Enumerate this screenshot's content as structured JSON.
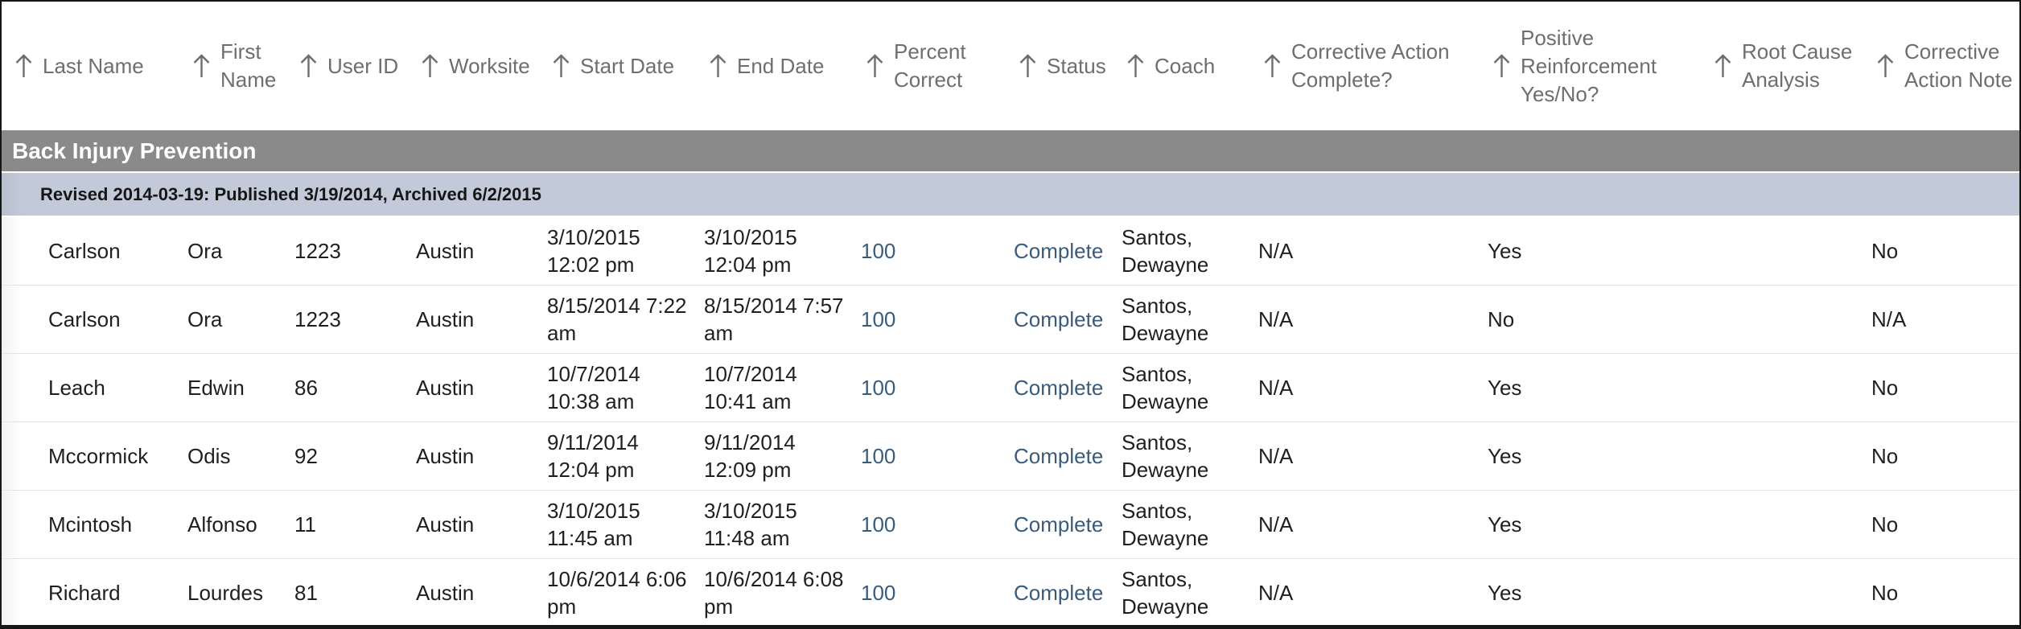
{
  "table": {
    "columns": [
      {
        "key": "last_name",
        "label": "Last Name",
        "type": "text",
        "sortable": true
      },
      {
        "key": "first_name",
        "label": "First Name",
        "type": "text",
        "sortable": true
      },
      {
        "key": "user_id",
        "label": "User ID",
        "type": "text",
        "sortable": true
      },
      {
        "key": "worksite",
        "label": "Worksite",
        "type": "text",
        "sortable": true
      },
      {
        "key": "start_date",
        "label": "Start Date",
        "type": "text",
        "sortable": true
      },
      {
        "key": "end_date",
        "label": "End Date",
        "type": "text",
        "sortable": true
      },
      {
        "key": "percent_correct",
        "label": "Percent Correct",
        "type": "link",
        "sortable": true
      },
      {
        "key": "status",
        "label": "Status",
        "type": "link",
        "sortable": true
      },
      {
        "key": "coach",
        "label": "Coach",
        "type": "text",
        "sortable": true
      },
      {
        "key": "corrective_action_complete",
        "label": "Corrective Action Complete?",
        "type": "text",
        "sortable": true
      },
      {
        "key": "positive_reinforcement",
        "label": "Positive Reinforcement Yes/No?",
        "type": "text",
        "sortable": true
      },
      {
        "key": "root_cause_analysis",
        "label": "Root Cause Analysis",
        "type": "text",
        "sortable": true
      },
      {
        "key": "corrective_action_note",
        "label": "Corrective Action Note",
        "type": "text",
        "sortable": true
      }
    ],
    "group": {
      "title": "Back Injury Prevention",
      "revision_note": "Revised 2014-03-19: Published 3/19/2014, Archived 6/2/2015"
    },
    "rows": [
      {
        "last_name": "Carlson",
        "first_name": "Ora",
        "user_id": "1223",
        "worksite": "Austin",
        "start_date": "3/10/2015 12:02 pm",
        "end_date": "3/10/2015 12:04 pm",
        "percent_correct": "100",
        "status": "Complete",
        "coach": "Santos, Dewayne",
        "corrective_action_complete": "N/A",
        "positive_reinforcement": "Yes",
        "root_cause_analysis": "",
        "corrective_action_note": "No"
      },
      {
        "last_name": "Carlson",
        "first_name": "Ora",
        "user_id": "1223",
        "worksite": "Austin",
        "start_date": "8/15/2014 7:22 am",
        "end_date": "8/15/2014 7:57 am",
        "percent_correct": "100",
        "status": "Complete",
        "coach": "Santos, Dewayne",
        "corrective_action_complete": "N/A",
        "positive_reinforcement": "No",
        "root_cause_analysis": "",
        "corrective_action_note": "N/A"
      },
      {
        "last_name": "Leach",
        "first_name": "Edwin",
        "user_id": "86",
        "worksite": "Austin",
        "start_date": "10/7/2014 10:38 am",
        "end_date": "10/7/2014 10:41 am",
        "percent_correct": "100",
        "status": "Complete",
        "coach": "Santos, Dewayne",
        "corrective_action_complete": "N/A",
        "positive_reinforcement": "Yes",
        "root_cause_analysis": "",
        "corrective_action_note": "No"
      },
      {
        "last_name": "Mccormick",
        "first_name": "Odis",
        "user_id": "92",
        "worksite": "Austin",
        "start_date": "9/11/2014 12:04 pm",
        "end_date": "9/11/2014 12:09 pm",
        "percent_correct": "100",
        "status": "Complete",
        "coach": "Santos, Dewayne",
        "corrective_action_complete": "N/A",
        "positive_reinforcement": "Yes",
        "root_cause_analysis": "",
        "corrective_action_note": "No"
      },
      {
        "last_name": "Mcintosh",
        "first_name": "Alfonso",
        "user_id": "11",
        "worksite": "Austin",
        "start_date": "3/10/2015 11:45 am",
        "end_date": "3/10/2015 11:48 am",
        "percent_correct": "100",
        "status": "Complete",
        "coach": "Santos, Dewayne",
        "corrective_action_complete": "N/A",
        "positive_reinforcement": "Yes",
        "root_cause_analysis": "",
        "corrective_action_note": "No"
      },
      {
        "last_name": "Richard",
        "first_name": "Lourdes",
        "user_id": "81",
        "worksite": "Austin",
        "start_date": "10/6/2014 6:06 pm",
        "end_date": "10/6/2014 6:08 pm",
        "percent_correct": "100",
        "status": "Complete",
        "coach": "Santos, Dewayne",
        "corrective_action_complete": "N/A",
        "positive_reinforcement": "Yes",
        "root_cause_analysis": "",
        "corrective_action_note": "No"
      }
    ]
  },
  "icons": {
    "sort_ascending": "arrow-upward"
  },
  "colors": {
    "link": "#3a5b7a",
    "header_text": "#6e6e6e",
    "group_header_bg": "#8a8a8a",
    "revision_bg": "#c2cad9"
  }
}
